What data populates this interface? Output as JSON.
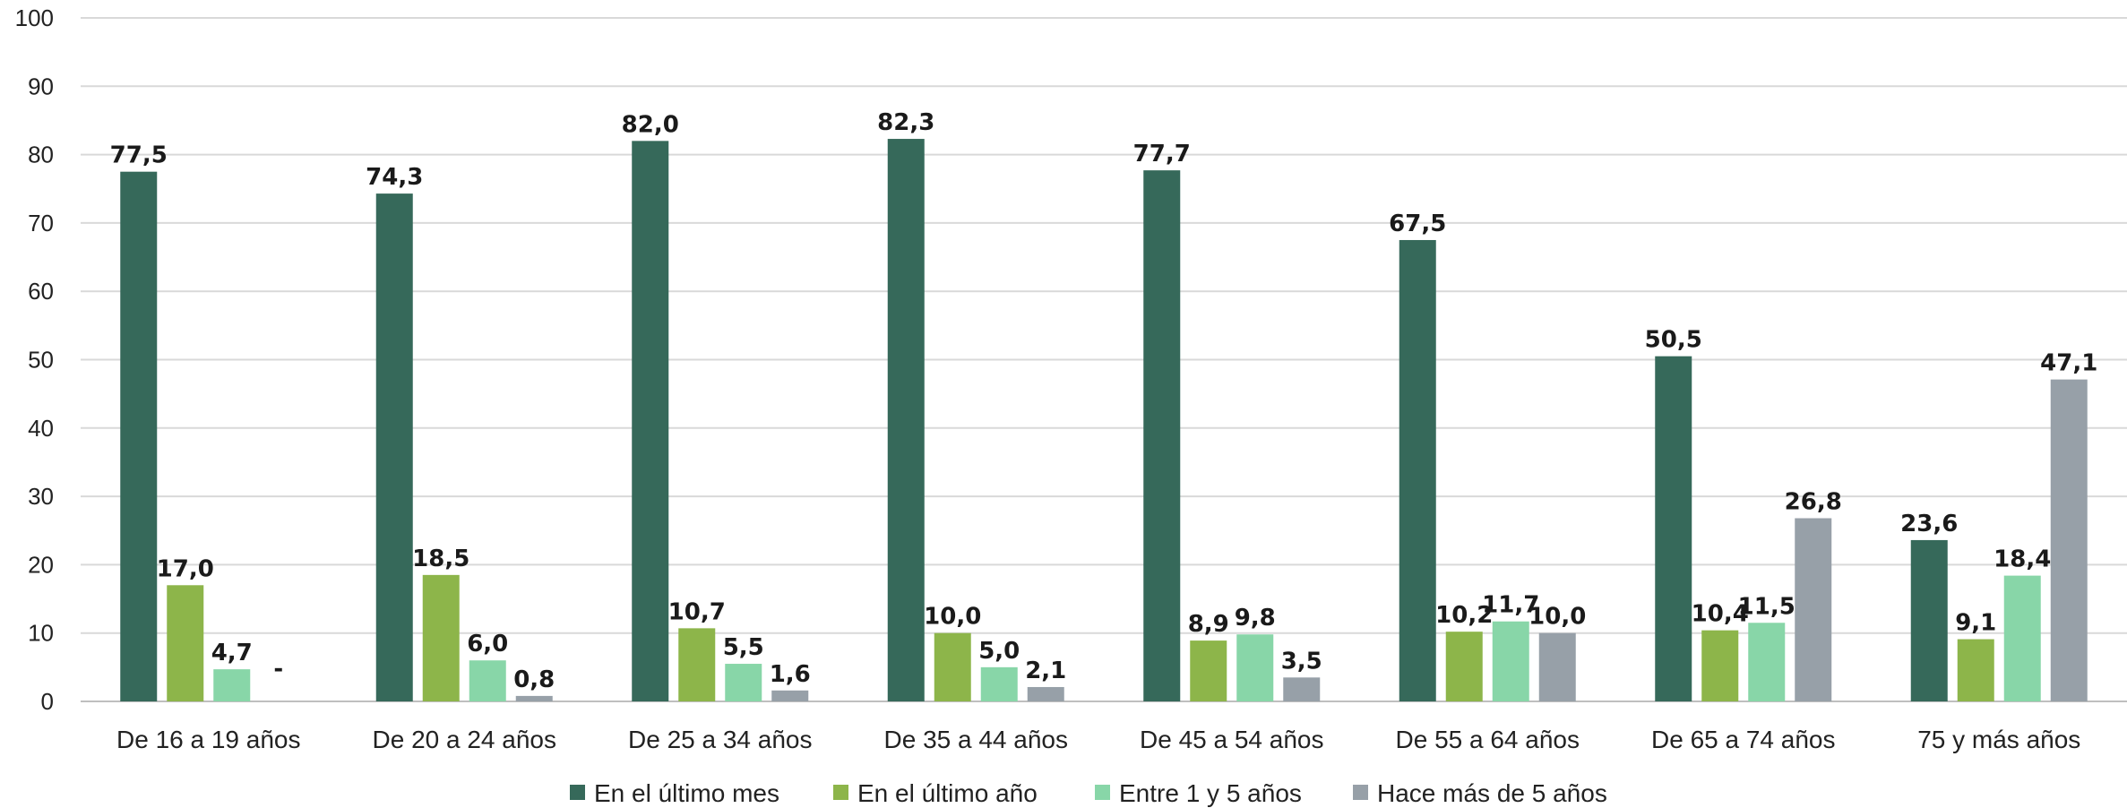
{
  "chart_data": {
    "type": "bar",
    "title": "",
    "xlabel": "",
    "ylabel": "",
    "ylim": [
      0,
      100
    ],
    "yticks": [
      0,
      10,
      20,
      30,
      40,
      50,
      60,
      70,
      80,
      90,
      100
    ],
    "grid": true,
    "legend_position": "bottom",
    "categories": [
      "De 16 a 19 años",
      "De 20 a 24 años",
      "De 25 a 34 años",
      "De 35 a 44 años",
      "De 45 a 54 años",
      "De 55 a 64 años",
      "De 65 a 74 años",
      "75 y más años"
    ],
    "series": [
      {
        "name": "En el último mes",
        "color": "#36695a",
        "values": [
          77.5,
          74.3,
          82.0,
          82.3,
          77.7,
          67.5,
          50.5,
          23.6
        ],
        "labels": [
          "77,5",
          "74,3",
          "82,0",
          "82,3",
          "77,7",
          "67,5",
          "50,5",
          "23,6"
        ]
      },
      {
        "name": "En el último año",
        "color": "#8db54a",
        "values": [
          17.0,
          18.5,
          10.7,
          10.0,
          8.9,
          10.2,
          10.4,
          9.1
        ],
        "labels": [
          "17,0",
          "18,5",
          "10,7",
          "10,0",
          "8,9",
          "10,2",
          "10,4",
          "9,1"
        ]
      },
      {
        "name": "Entre 1 y 5 años",
        "color": "#88d6a8",
        "values": [
          4.7,
          6.0,
          5.5,
          5.0,
          9.8,
          11.7,
          11.5,
          18.4
        ],
        "labels": [
          "4,7",
          "6,0",
          "5,5",
          "5,0",
          "9,8",
          "11,7",
          "11,5",
          "18,4"
        ]
      },
      {
        "name": "Hace más de 5 años",
        "color": "#97a0a8",
        "values": [
          null,
          0.8,
          1.6,
          2.1,
          3.5,
          10.0,
          26.8,
          47.1
        ],
        "labels": [
          "-",
          "0,8",
          "1,6",
          "2,1",
          "3,5",
          "10,0",
          "26,8",
          "47,1"
        ]
      }
    ]
  }
}
